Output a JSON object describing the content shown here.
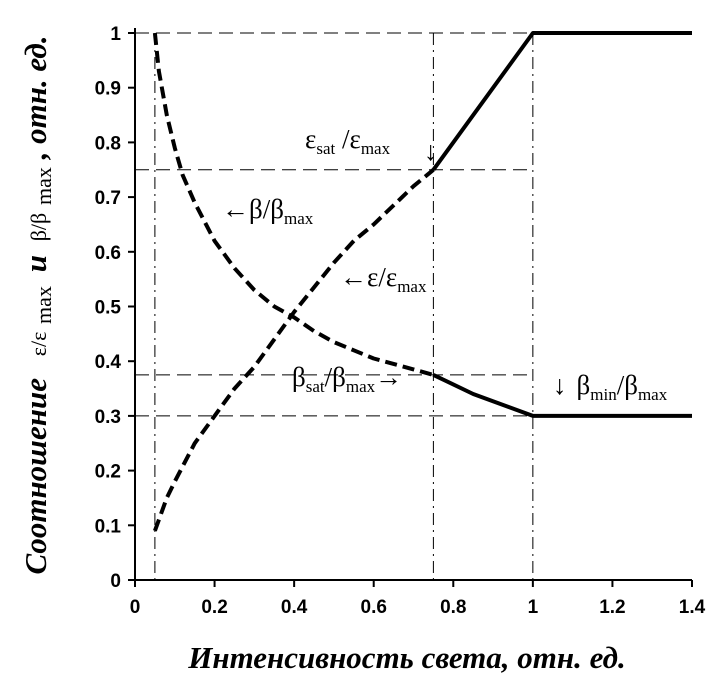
{
  "chart_data": {
    "type": "line",
    "xlabel": "Интенсивность света, отн. ед.",
    "ylabel": {
      "prefix": "Соотношение",
      "mid": "и",
      "suffix": ", отн. ед.",
      "sym1": "ε/ε",
      "sym1_sub": "max",
      "sym2": "β/β",
      "sym2_sub": "max"
    },
    "xlim": [
      0,
      1.4
    ],
    "ylim": [
      0,
      1
    ],
    "xticks": [
      0,
      0.2,
      0.4,
      0.6,
      0.8,
      1,
      1.2,
      1.4
    ],
    "xtick_labels": [
      "0",
      "0.2",
      "0.4",
      "0.6",
      "0.8",
      "1",
      "1.2",
      "1.4"
    ],
    "yticks": [
      0,
      0.1,
      0.2,
      0.3,
      0.4,
      0.5,
      0.6,
      0.7,
      0.8,
      0.9,
      1
    ],
    "ytick_labels": [
      "0",
      "0.1",
      "0.2",
      "0.3",
      "0.4",
      "0.5",
      "0.6",
      "0.7",
      "0.8",
      "0.9",
      "1"
    ],
    "grid": false,
    "series": [
      {
        "key": "beta_dashed",
        "style": "dashed",
        "x": [
          0.05,
          0.06,
          0.08,
          0.1,
          0.12,
          0.15,
          0.2,
          0.25,
          0.3,
          0.35,
          0.4,
          0.45,
          0.5,
          0.55,
          0.6,
          0.65,
          0.7,
          0.75
        ],
        "y": [
          1.0,
          0.93,
          0.85,
          0.79,
          0.74,
          0.69,
          0.62,
          0.57,
          0.53,
          0.5,
          0.48,
          0.455,
          0.435,
          0.42,
          0.405,
          0.395,
          0.385,
          0.375
        ]
      },
      {
        "key": "beta_solid",
        "style": "solid",
        "x": [
          0.75,
          0.85,
          1.0,
          1.4
        ],
        "y": [
          0.375,
          0.34,
          0.3,
          0.3
        ]
      },
      {
        "key": "eps_dashed",
        "style": "dashed",
        "x": [
          0.05,
          0.08,
          0.1,
          0.15,
          0.2,
          0.25,
          0.3,
          0.35,
          0.4,
          0.45,
          0.5,
          0.55,
          0.6,
          0.65,
          0.7,
          0.75
        ],
        "y": [
          0.09,
          0.15,
          0.18,
          0.25,
          0.3,
          0.35,
          0.39,
          0.44,
          0.49,
          0.535,
          0.58,
          0.62,
          0.65,
          0.685,
          0.72,
          0.75
        ]
      },
      {
        "key": "eps_solid",
        "style": "solid",
        "x": [
          0.75,
          1.0,
          1.4
        ],
        "y": [
          0.75,
          1.0,
          1.0
        ]
      }
    ],
    "reference_lines": {
      "vertical": [
        0.05,
        0.75,
        1.0
      ],
      "horizontal": [
        1.0,
        0.75,
        0.375,
        0.3
      ]
    },
    "annotations": [
      {
        "key": "eps_sat",
        "main": "ε",
        "sub": "sat",
        "main2": " /ε",
        "sub2": "max",
        "arrow": "↓"
      },
      {
        "key": "beta_label",
        "arrow": "←",
        "main": "β/β",
        "sub": "max"
      },
      {
        "key": "eps_label",
        "arrow": "←",
        "main": "ε/ε",
        "sub": "max"
      },
      {
        "key": "beta_sat",
        "main": "β",
        "sub": "sat",
        "main2": "/β",
        "sub2": "max",
        "arrow": "→"
      },
      {
        "key": "beta_min",
        "arrow": "↓",
        "main": "β",
        "sub": "min",
        "main2": "/β",
        "sub2": "max"
      }
    ]
  }
}
